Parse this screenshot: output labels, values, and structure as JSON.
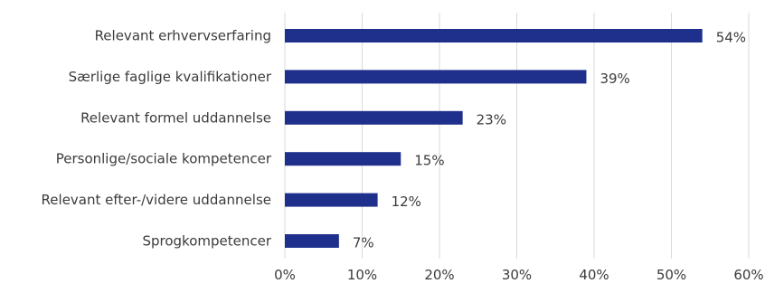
{
  "chart_data": {
    "type": "bar",
    "orientation": "horizontal",
    "title": "",
    "categories": [
      "Relevant erhvervserfaring",
      "Særlige faglige kvalifikationer",
      "Relevant formel uddannelse",
      "Personlige/sociale kompetencer",
      "Relevant efter-/videre uddannelse",
      "Sprogkompetencer"
    ],
    "values": [
      54,
      39,
      23,
      15,
      12,
      7
    ],
    "data_labels": [
      "54%",
      "39%",
      "23%",
      "15%",
      "12%",
      "7%"
    ],
    "xlim": [
      0,
      60
    ],
    "x_ticks": [
      0,
      10,
      20,
      30,
      40,
      50,
      60
    ],
    "x_tick_labels": [
      "0%",
      "10%",
      "20%",
      "30%",
      "40%",
      "50%",
      "60%"
    ],
    "xlabel": "",
    "ylabel": "",
    "grid": "vertical",
    "legend": "none",
    "bar_color": "#1f2f8c",
    "grid_color": "#d9d9d9",
    "text_color": "#3b3b3b"
  }
}
